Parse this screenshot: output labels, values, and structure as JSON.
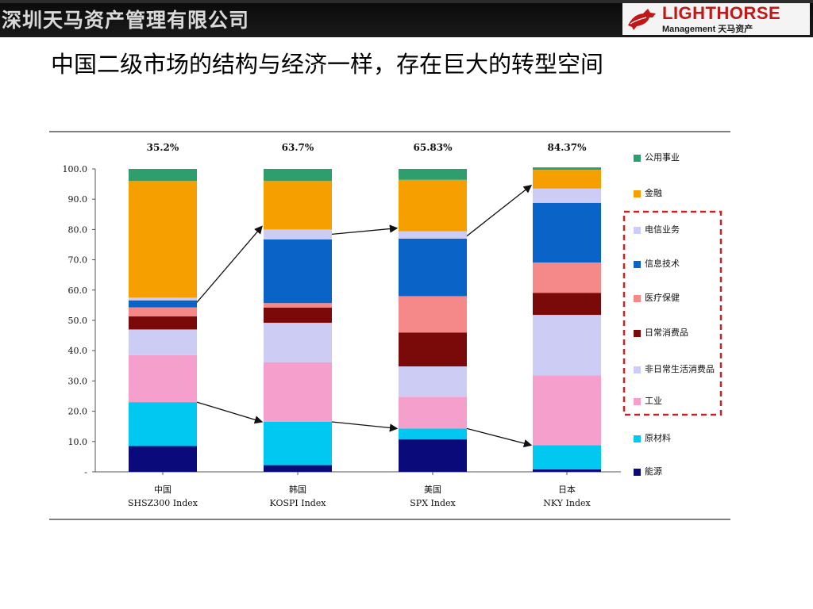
{
  "header": {
    "company": "深圳天马资产管理有限公司",
    "logo_brand": "LIGHTHORSE",
    "logo_sub": "Management   天马资产",
    "logo_icon": "horse-icon",
    "brand_color": "#c01818"
  },
  "slide": {
    "title": "中国二级市场的结构与经济一样，存在巨大的转型空间"
  },
  "chart_data": {
    "type": "bar",
    "stacked": true,
    "ylim": [
      0,
      100
    ],
    "yticks": [
      "100.0",
      "90.0",
      "80.0",
      "70.0",
      "60.0",
      "50.0",
      "40.0",
      "30.0",
      "20.0",
      "10.0",
      "-"
    ],
    "categories": [
      {
        "name": "中国",
        "index": "SHSZ300 Index",
        "top_label": "35.2%"
      },
      {
        "name": "韩国",
        "index": "KOSPI Index",
        "top_label": "63.7%"
      },
      {
        "name": "美国",
        "index": "SPX Index",
        "top_label": "65.83%"
      },
      {
        "name": "日本",
        "index": "NKY Index",
        "top_label": "84.37%"
      }
    ],
    "series": [
      {
        "name": "能源",
        "color": "#0a0a7a",
        "values": [
          8.5,
          2.2,
          10.7,
          0.8
        ]
      },
      {
        "name": "原材料",
        "color": "#00c8f0",
        "values": [
          14.5,
          14.3,
          3.6,
          8.0
        ]
      },
      {
        "name": "工业",
        "color": "#f5a0cc",
        "values": [
          15.5,
          19.7,
          10.5,
          23.0
        ]
      },
      {
        "name": "非日常生活消费品",
        "color": "#ccccf5",
        "values": [
          8.5,
          13.0,
          10.0,
          20.0
        ]
      },
      {
        "name": "日常消费品",
        "color": "#7a0a0a",
        "values": [
          4.3,
          5.0,
          11.2,
          7.3
        ]
      },
      {
        "name": "医疗保健",
        "color": "#f58888",
        "values": [
          3.0,
          1.5,
          12.0,
          10.0
        ]
      },
      {
        "name": "信息技术",
        "color": "#0a64c8",
        "values": [
          2.3,
          21.0,
          19.0,
          19.7
        ]
      },
      {
        "name": "电信业务",
        "color": "#ccccf5",
        "values": [
          0.9,
          3.3,
          2.4,
          4.7
        ]
      },
      {
        "name": "金融",
        "color": "#f5a000",
        "values": [
          38.5,
          16.0,
          17.0,
          6.2
        ]
      },
      {
        "name": "公用事业",
        "color": "#2e9e6e",
        "values": [
          4.0,
          4.0,
          3.6,
          0.8
        ]
      }
    ],
    "highlight_box": {
      "color": "#cc2222",
      "style": "dashed",
      "covers": [
        "电信业务",
        "信息技术",
        "医疗保健",
        "日常消费品",
        "非日常生活消费品",
        "工业"
      ]
    },
    "arrows": [
      {
        "from_category": 0,
        "to_category": 1,
        "level": "upper"
      },
      {
        "from_category": 1,
        "to_category": 2,
        "level": "upper"
      },
      {
        "from_category": 2,
        "to_category": 3,
        "level": "upper"
      },
      {
        "from_category": 0,
        "to_category": 1,
        "level": "lower"
      },
      {
        "from_category": 1,
        "to_category": 2,
        "level": "lower"
      },
      {
        "from_category": 2,
        "to_category": 3,
        "level": "lower"
      }
    ],
    "legend_position": "right",
    "legend_order": [
      "公用事业",
      "金融",
      "电信业务",
      "信息技术",
      "医疗保健",
      "日常消费品",
      "非日常生活消费品",
      "工业",
      "原材料",
      "能源"
    ],
    "grid": false
  }
}
